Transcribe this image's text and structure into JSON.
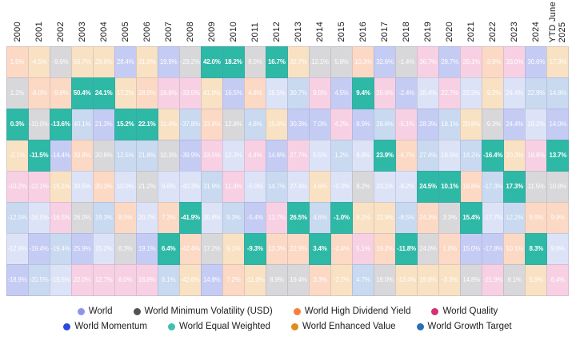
{
  "chart_data": {
    "type": "heatmap",
    "description": "Annual index returns quilt, each column sorted best-to-worst; World Equal Weighted cells highlighted",
    "columns": [
      "2000",
      "2001",
      "2002",
      "2003",
      "2004",
      "2005",
      "2006",
      "2007",
      "2008",
      "2009",
      "2010",
      "2011",
      "2012",
      "2013",
      "2014",
      "2015",
      "2016",
      "2017",
      "2018",
      "2019",
      "2020",
      "2021",
      "2022",
      "2023",
      "2024",
      "YTD June\n2025"
    ],
    "indexes": {
      "world": {
        "label": "World",
        "dot": "#8E95E9",
        "cell": "#dde3f7"
      },
      "minvol": {
        "label": "World Minimum Volatility (USD)",
        "dot": "#515156",
        "cell": "#d8d8da"
      },
      "hdy": {
        "label": "World High Dividend Yield",
        "dot": "#F5803D",
        "cell": "#fcd9c5"
      },
      "quality": {
        "label": "World Quality",
        "dot": "#D62E73",
        "cell": "#f7d1e3"
      },
      "momentum": {
        "label": "World Momentum",
        "dot": "#2B49DA",
        "cell": "#c5ccf4"
      },
      "eqw": {
        "label": "World Equal Weighted",
        "dot": "#41C0B0",
        "cell": "#2eb9a7",
        "highlight": true
      },
      "value": {
        "label": "World Enhanced Value",
        "dot": "#DD8D1C",
        "cell": "#f8e2c3"
      },
      "growth": {
        "label": "World Growth Target",
        "dot": "#2E6FB6",
        "cell": "#c8d9f0"
      }
    },
    "legend_rows": [
      [
        "world",
        "minvol",
        "hdy",
        "quality"
      ],
      [
        "momentum",
        "eqw",
        "value",
        "growth"
      ]
    ],
    "grid": [
      {
        "year": "2000",
        "cells": [
          {
            "v": "1.5%",
            "k": "hdy"
          },
          {
            "v": "1.2%",
            "k": "minvol"
          },
          {
            "v": "0.3%",
            "k": "eqw"
          },
          {
            "v": "-2.1%",
            "k": "value"
          },
          {
            "v": "-10.2%",
            "k": "quality"
          },
          {
            "v": "-12.5%",
            "k": "growth"
          },
          {
            "v": "-12.9%",
            "k": "world"
          },
          {
            "v": "-18.9%",
            "k": "momentum"
          }
        ]
      },
      {
        "year": "2001",
        "cells": [
          {
            "v": "-4.5%",
            "k": "value"
          },
          {
            "v": "-8.0%",
            "k": "hdy"
          },
          {
            "v": "-10.0%",
            "k": "minvol"
          },
          {
            "v": "-11.5%",
            "k": "eqw"
          },
          {
            "v": "-12.1%",
            "k": "quality"
          },
          {
            "v": "-16.5%",
            "k": "world"
          },
          {
            "v": "-19.4%",
            "k": "momentum"
          },
          {
            "v": "-20.5%",
            "k": "growth"
          }
        ]
      },
      {
        "year": "2002",
        "cells": [
          {
            "v": "-9.6%",
            "k": "minvol"
          },
          {
            "v": "-9.8%",
            "k": "hdy"
          },
          {
            "v": "-13.6%",
            "k": "eqw"
          },
          {
            "v": "-14.4%",
            "k": "momentum"
          },
          {
            "v": "-15.1%",
            "k": "value"
          },
          {
            "v": "-16.5%",
            "k": "quality"
          },
          {
            "v": "-19.4%",
            "k": "growth"
          },
          {
            "v": "-19.5%",
            "k": "world"
          }
        ]
      },
      {
        "year": "2003",
        "cells": [
          {
            "v": "56.7%",
            "k": "value"
          },
          {
            "v": "50.4%",
            "k": "eqw"
          },
          {
            "v": "40.1%",
            "k": "growth"
          },
          {
            "v": "33.8%",
            "k": "hdy"
          },
          {
            "v": "30.5%",
            "k": "world"
          },
          {
            "v": "26.0%",
            "k": "minvol"
          },
          {
            "v": "25.9%",
            "k": "momentum"
          },
          {
            "v": "22.0%",
            "k": "quality"
          }
        ]
      },
      {
        "year": "2004",
        "cells": [
          {
            "v": "28.6%",
            "k": "value"
          },
          {
            "v": "24.1%",
            "k": "eqw"
          },
          {
            "v": "21.3%",
            "k": "momentum"
          },
          {
            "v": "20.8%",
            "k": "minvol"
          },
          {
            "v": "20.0%",
            "k": "hdy"
          },
          {
            "v": "19.3%",
            "k": "growth"
          },
          {
            "v": "15.2%",
            "k": "world"
          },
          {
            "v": "12.7%",
            "k": "quality"
          }
        ]
      },
      {
        "year": "2005",
        "cells": [
          {
            "v": "28.4%",
            "k": "momentum"
          },
          {
            "v": "17.2%",
            "k": "value"
          },
          {
            "v": "15.2%",
            "k": "eqw"
          },
          {
            "v": "12.5%",
            "k": "growth"
          },
          {
            "v": "10.0%",
            "k": "world"
          },
          {
            "v": "8.5%",
            "k": "hdy"
          },
          {
            "v": "8.3%",
            "k": "minvol"
          },
          {
            "v": "6.0%",
            "k": "quality"
          }
        ]
      },
      {
        "year": "2006",
        "cells": [
          {
            "v": "31.0%",
            "k": "value"
          },
          {
            "v": "28.9%",
            "k": "hdy"
          },
          {
            "v": "22.1%",
            "k": "eqw"
          },
          {
            "v": "21.8%",
            "k": "growth"
          },
          {
            "v": "21.2%",
            "k": "minvol"
          },
          {
            "v": "20.7%",
            "k": "world"
          },
          {
            "v": "19.1%",
            "k": "momentum"
          },
          {
            "v": "16.8%",
            "k": "quality"
          }
        ]
      },
      {
        "year": "2007",
        "cells": [
          {
            "v": "19.9%",
            "k": "momentum"
          },
          {
            "v": "16.8%",
            "k": "quality"
          },
          {
            "v": "11.4%",
            "k": "value"
          },
          {
            "v": "10.3%",
            "k": "minvol"
          },
          {
            "v": "9.6%",
            "k": "world"
          },
          {
            "v": "7.3%",
            "k": "hdy"
          },
          {
            "v": "6.4%",
            "k": "eqw"
          },
          {
            "v": "6.1%",
            "k": "growth"
          }
        ]
      },
      {
        "year": "2008",
        "cells": [
          {
            "v": "-29.2%",
            "k": "minvol"
          },
          {
            "v": "-33.5%",
            "k": "quality"
          },
          {
            "v": "-37.8%",
            "k": "growth"
          },
          {
            "v": "-39.9%",
            "k": "momentum"
          },
          {
            "v": "-40.3%",
            "k": "world"
          },
          {
            "v": "-41.9%",
            "k": "eqw"
          },
          {
            "v": "-42.4%",
            "k": "hdy"
          },
          {
            "v": "-42.6%",
            "k": "value"
          }
        ]
      },
      {
        "year": "2009",
        "cells": [
          {
            "v": "42.0%",
            "k": "eqw"
          },
          {
            "v": "41.9%",
            "k": "value"
          },
          {
            "v": "33.8%",
            "k": "hdy"
          },
          {
            "v": "33.5%",
            "k": "quality"
          },
          {
            "v": "31.9%",
            "k": "growth"
          },
          {
            "v": "30.8%",
            "k": "world"
          },
          {
            "v": "17.2%",
            "k": "minvol"
          },
          {
            "v": "14.8%",
            "k": "momentum"
          }
        ]
      },
      {
        "year": "2010",
        "cells": [
          {
            "v": "18.2%",
            "k": "eqw"
          },
          {
            "v": "16.5%",
            "k": "momentum"
          },
          {
            "v": "12.8%",
            "k": "minvol"
          },
          {
            "v": "12.3%",
            "k": "world"
          },
          {
            "v": "11.4%",
            "k": "quality"
          },
          {
            "v": "9.3%",
            "k": "growth"
          },
          {
            "v": "9.1%",
            "k": "value"
          },
          {
            "v": "7.2%",
            "k": "hdy"
          }
        ]
      },
      {
        "year": "2011",
        "cells": [
          {
            "v": "8.0%",
            "k": "minvol"
          },
          {
            "v": "4.8%",
            "k": "hdy"
          },
          {
            "v": "4.8%",
            "k": "growth"
          },
          {
            "v": "4.4%",
            "k": "quality"
          },
          {
            "v": "-5.0%",
            "k": "world"
          },
          {
            "v": "-5.4%",
            "k": "momentum"
          },
          {
            "v": "-9.3%",
            "k": "eqw"
          },
          {
            "v": "-11.0%",
            "k": "value"
          }
        ]
      },
      {
        "year": "2012",
        "cells": [
          {
            "v": "16.7%",
            "k": "eqw"
          },
          {
            "v": "16.5%",
            "k": "world"
          },
          {
            "v": "15.0%",
            "k": "value"
          },
          {
            "v": "14.8%",
            "k": "momentum"
          },
          {
            "v": "14.7%",
            "k": "growth"
          },
          {
            "v": "13.7%",
            "k": "quality"
          },
          {
            "v": "13.3%",
            "k": "hdy"
          },
          {
            "v": "8.9%",
            "k": "minvol"
          }
        ]
      },
      {
        "year": "2013",
        "cells": [
          {
            "v": "32.7%",
            "k": "value"
          },
          {
            "v": "30.7%",
            "k": "growth"
          },
          {
            "v": "30.3%",
            "k": "momentum"
          },
          {
            "v": "27.7%",
            "k": "quality"
          },
          {
            "v": "27.4%",
            "k": "world"
          },
          {
            "v": "26.5%",
            "k": "eqw"
          },
          {
            "v": "22.9%",
            "k": "hdy"
          },
          {
            "v": "19.4%",
            "k": "minvol"
          }
        ]
      },
      {
        "year": "2014",
        "cells": [
          {
            "v": "12.1%",
            "k": "minvol"
          },
          {
            "v": "9.0%",
            "k": "quality"
          },
          {
            "v": "7.0%",
            "k": "momentum"
          },
          {
            "v": "5.5%",
            "k": "world"
          },
          {
            "v": "4.6%",
            "k": "value"
          },
          {
            "v": "4.6%",
            "k": "growth"
          },
          {
            "v": "3.4%",
            "k": "eqw"
          },
          {
            "v": "3.3%",
            "k": "hdy"
          }
        ]
      },
      {
        "year": "2015",
        "cells": [
          {
            "v": "5.8%",
            "k": "minvol"
          },
          {
            "v": "4.5%",
            "k": "momentum"
          },
          {
            "v": "4.2%",
            "k": "quality"
          },
          {
            "v": "1.2%",
            "k": "growth"
          },
          {
            "v": "-0.3%",
            "k": "world"
          },
          {
            "v": "-1.0%",
            "k": "eqw"
          },
          {
            "v": "-2.4%",
            "k": "hdy"
          },
          {
            "v": "-2.7%",
            "k": "value"
          }
        ]
      },
      {
        "year": "2016",
        "cells": [
          {
            "v": "10.3%",
            "k": "hdy"
          },
          {
            "v": "9.4%",
            "k": "eqw"
          },
          {
            "v": "8.9%",
            "k": "momentum"
          },
          {
            "v": "8.9%",
            "k": "world"
          },
          {
            "v": "8.2%",
            "k": "minvol"
          },
          {
            "v": "8.2%",
            "k": "value"
          },
          {
            "v": "5.1%",
            "k": "quality"
          },
          {
            "v": "4.7%",
            "k": "growth"
          }
        ]
      },
      {
        "year": "2017",
        "cells": [
          {
            "v": "32.6%",
            "k": "momentum"
          },
          {
            "v": "26.6%",
            "k": "quality"
          },
          {
            "v": "26.6%",
            "k": "growth"
          },
          {
            "v": "23.9%",
            "k": "eqw"
          },
          {
            "v": "23.1%",
            "k": "world"
          },
          {
            "v": "22.9%",
            "k": "value"
          },
          {
            "v": "19.2%",
            "k": "hdy"
          },
          {
            "v": "18.0%",
            "k": "minvol"
          }
        ]
      },
      {
        "year": "2018",
        "cells": [
          {
            "v": "-1.4%",
            "k": "minvol"
          },
          {
            "v": "-2.4%",
            "k": "momentum"
          },
          {
            "v": "-5.1%",
            "k": "quality"
          },
          {
            "v": "-6.7%",
            "k": "hdy"
          },
          {
            "v": "-8.2%",
            "k": "world"
          },
          {
            "v": "-8.5%",
            "k": "growth"
          },
          {
            "v": "-11.8%",
            "k": "eqw"
          },
          {
            "v": "-13.4%",
            "k": "value"
          }
        ]
      },
      {
        "year": "2019",
        "cells": [
          {
            "v": "36.7%",
            "k": "quality"
          },
          {
            "v": "28.4%",
            "k": "world"
          },
          {
            "v": "28.3%",
            "k": "momentum"
          },
          {
            "v": "27.4%",
            "k": "growth"
          },
          {
            "v": "24.5%",
            "k": "eqw"
          },
          {
            "v": "24.3%",
            "k": "hdy"
          },
          {
            "v": "24.0%",
            "k": "minvol"
          },
          {
            "v": "19.8%",
            "k": "value"
          }
        ]
      },
      {
        "year": "2020",
        "cells": [
          {
            "v": "28.7%",
            "k": "momentum"
          },
          {
            "v": "22.7%",
            "k": "quality"
          },
          {
            "v": "18.1%",
            "k": "growth"
          },
          {
            "v": "16.5%",
            "k": "world"
          },
          {
            "v": "10.1%",
            "k": "eqw"
          },
          {
            "v": "3.3%",
            "k": "minvol"
          },
          {
            "v": "1.0%",
            "k": "hdy"
          },
          {
            "v": "-3.3%",
            "k": "value"
          }
        ]
      },
      {
        "year": "2021",
        "cells": [
          {
            "v": "26.1%",
            "k": "quality"
          },
          {
            "v": "22.3%",
            "k": "world"
          },
          {
            "v": "20.8%",
            "k": "value"
          },
          {
            "v": "18.2%",
            "k": "growth"
          },
          {
            "v": "16.8%",
            "k": "hdy"
          },
          {
            "v": "15.4%",
            "k": "eqw"
          },
          {
            "v": "15.0%",
            "k": "momentum"
          },
          {
            "v": "14.8%",
            "k": "minvol"
          }
        ]
      },
      {
        "year": "2022",
        "cells": [
          {
            "v": "-3.9%",
            "k": "hdy"
          },
          {
            "v": "-9.2%",
            "k": "value"
          },
          {
            "v": "-9.3%",
            "k": "minvol"
          },
          {
            "v": "-16.4%",
            "k": "eqw"
          },
          {
            "v": "-17.3%",
            "k": "growth"
          },
          {
            "v": "-17.7%",
            "k": "world"
          },
          {
            "v": "-17.8%",
            "k": "momentum"
          },
          {
            "v": "-21.9%",
            "k": "quality"
          }
        ]
      },
      {
        "year": "2023",
        "cells": [
          {
            "v": "33.0%",
            "k": "quality"
          },
          {
            "v": "24.4%",
            "k": "world"
          },
          {
            "v": "24.4%",
            "k": "momentum"
          },
          {
            "v": "20.3%",
            "k": "value"
          },
          {
            "v": "17.3%",
            "k": "eqw"
          },
          {
            "v": "12.2%",
            "k": "growth"
          },
          {
            "v": "10.1%",
            "k": "hdy"
          },
          {
            "v": "8.1%",
            "k": "minvol"
          }
        ]
      },
      {
        "year": "2024",
        "cells": [
          {
            "v": "30.6%",
            "k": "momentum"
          },
          {
            "v": "22.9%",
            "k": "growth"
          },
          {
            "v": "19.2%",
            "k": "world"
          },
          {
            "v": "18.8%",
            "k": "quality"
          },
          {
            "v": "11.5%",
            "k": "minvol"
          },
          {
            "v": "8.9%",
            "k": "hdy"
          },
          {
            "v": "8.3%",
            "k": "eqw"
          },
          {
            "v": "5.9%",
            "k": "value"
          }
        ]
      },
      {
        "year": "YTD June 2025",
        "cells": [
          {
            "v": "17.3%",
            "k": "value"
          },
          {
            "v": "14.8%",
            "k": "growth"
          },
          {
            "v": "14.0%",
            "k": "momentum"
          },
          {
            "v": "13.7%",
            "k": "eqw"
          },
          {
            "v": "10.8%",
            "k": "minvol"
          },
          {
            "v": "9.9%",
            "k": "hdy"
          },
          {
            "v": "9.8%",
            "k": "world"
          },
          {
            "v": "6.4%",
            "k": "quality"
          }
        ]
      }
    ]
  }
}
